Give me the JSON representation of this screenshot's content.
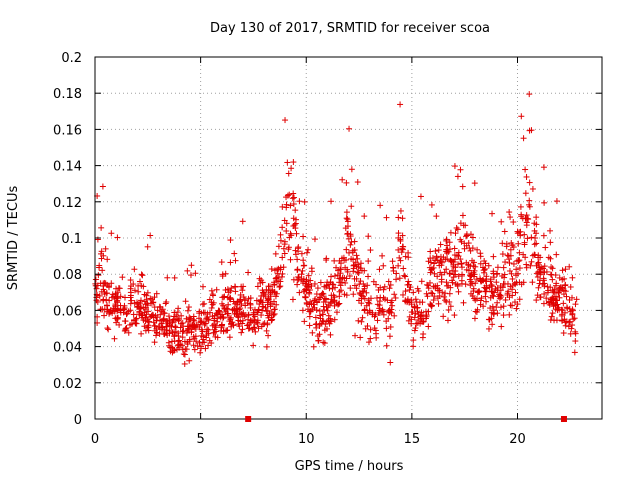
{
  "chart_data": {
    "type": "scatter",
    "title": "Day 130 of 2017, SRMTID for receiver scoa",
    "xlabel": "GPS time / hours",
    "ylabel": "SRMTID / TECUs",
    "xlim": [
      0,
      24
    ],
    "ylim": [
      0,
      0.2
    ],
    "x_ticks": [
      0,
      5,
      10,
      15,
      20
    ],
    "x_tick_labels": [
      "0",
      "5",
      "10",
      "15",
      "20"
    ],
    "y_ticks": [
      0,
      0.02,
      0.04,
      0.06,
      0.08,
      0.1,
      0.12,
      0.14,
      0.16,
      0.18,
      0.2
    ],
    "y_tick_labels": [
      "0",
      "0.02",
      "0.04",
      "0.06",
      "0.08",
      "0.1",
      "0.12",
      "0.14",
      "0.16",
      "0.18",
      "0.2"
    ],
    "grid": true,
    "marker": "+",
    "color": "#e00000",
    "zero_value_markers": [
      {
        "x": 7.25,
        "y": 0
      },
      {
        "x": 22.2,
        "y": 0
      }
    ],
    "series": [
      {
        "name": "SRMTID",
        "envelope_note": "approximate trend of the dense point cloud",
        "x": [
          0.0,
          0.2,
          0.5,
          1.0,
          1.5,
          2.0,
          2.5,
          3.0,
          3.5,
          4.0,
          4.5,
          5.0,
          5.5,
          6.0,
          6.5,
          7.0,
          7.5,
          8.0,
          8.5,
          9.0,
          9.3,
          9.6,
          10.0,
          10.5,
          11.0,
          11.5,
          12.0,
          12.5,
          13.0,
          13.5,
          14.0,
          14.5,
          15.0,
          15.5,
          16.0,
          16.5,
          17.0,
          17.5,
          18.0,
          18.5,
          19.0,
          19.5,
          20.0,
          20.3,
          20.6,
          21.0,
          21.5,
          22.0,
          22.5,
          22.8
        ],
        "center": [
          0.065,
          0.09,
          0.065,
          0.062,
          0.06,
          0.065,
          0.058,
          0.055,
          0.05,
          0.048,
          0.047,
          0.05,
          0.055,
          0.06,
          0.06,
          0.06,
          0.055,
          0.06,
          0.07,
          0.1,
          0.12,
          0.09,
          0.07,
          0.06,
          0.06,
          0.07,
          0.1,
          0.07,
          0.06,
          0.065,
          0.06,
          0.1,
          0.06,
          0.06,
          0.075,
          0.08,
          0.085,
          0.09,
          0.08,
          0.07,
          0.065,
          0.08,
          0.085,
          0.1,
          0.11,
          0.08,
          0.07,
          0.065,
          0.06,
          0.055
        ],
        "spread": [
          0.022,
          0.05,
          0.024,
          0.022,
          0.022,
          0.025,
          0.022,
          0.02,
          0.02,
          0.02,
          0.02,
          0.022,
          0.022,
          0.022,
          0.022,
          0.025,
          0.025,
          0.025,
          0.025,
          0.04,
          0.05,
          0.035,
          0.03,
          0.028,
          0.028,
          0.03,
          0.05,
          0.03,
          0.028,
          0.03,
          0.03,
          0.05,
          0.028,
          0.028,
          0.03,
          0.035,
          0.04,
          0.035,
          0.03,
          0.03,
          0.03,
          0.035,
          0.04,
          0.045,
          0.05,
          0.03,
          0.028,
          0.028,
          0.028,
          0.025
        ]
      }
    ]
  }
}
